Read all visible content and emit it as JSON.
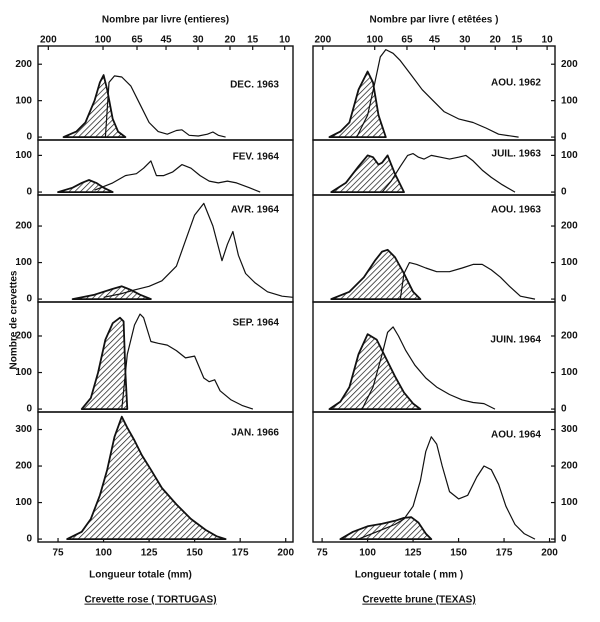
{
  "chart_data": [
    {
      "type": "line",
      "color": "#111111",
      "x2label": "Nombre par livre (entieres)",
      "x2ticks": [
        200,
        100,
        65,
        45,
        30,
        20,
        15,
        10
      ],
      "x2lim": [
        228,
        9
      ],
      "x2log": true,
      "xlabel": "Longueur totale (mm)",
      "xlim": [
        64,
        204
      ],
      "xticks": [
        75,
        100,
        125,
        150,
        175,
        200
      ],
      "caption": "Crevette rose ( TORTUGAS)",
      "ylabel": "Nombre de crevettes",
      "yaxis_side": "left",
      "panels": [
        {
          "label": "DEC. 1963",
          "ylim": [
            -8,
            250
          ],
          "yticks": [
            0,
            100,
            200
          ],
          "series": [
            {
              "hatched": true,
              "x": [
                78,
                85,
                90,
                95,
                98,
                100,
                102,
                105,
                108,
                112
              ],
              "values": [
                0,
                15,
                40,
                100,
                150,
                170,
                130,
                50,
                15,
                0
              ]
            },
            {
              "hatched": false,
              "x": [
                101,
                103,
                106,
                110,
                115,
                120,
                125,
                130,
                135,
                140,
                143,
                147,
                152,
                157,
                160,
                163,
                167
              ],
              "values": [
                0,
                150,
                168,
                165,
                140,
                90,
                40,
                15,
                8,
                18,
                20,
                5,
                3,
                8,
                14,
                5,
                0
              ]
            }
          ]
        },
        {
          "label": "FEV. 1964",
          "ylim": [
            -8,
            142
          ],
          "yticks": [
            0,
            100
          ],
          "series": [
            {
              "hatched": true,
              "x": [
                75,
                83,
                88,
                92,
                96,
                100,
                105
              ],
              "values": [
                0,
                12,
                25,
                33,
                25,
                12,
                0
              ]
            },
            {
              "hatched": false,
              "x": [
                95,
                105,
                112,
                118,
                122,
                126,
                129,
                133,
                138,
                143,
                148,
                153,
                158,
                163,
                168,
                173,
                180,
                186
              ],
              "values": [
                5,
                25,
                45,
                50,
                65,
                85,
                45,
                45,
                55,
                75,
                65,
                45,
                30,
                25,
                30,
                25,
                12,
                0
              ]
            }
          ]
        },
        {
          "label": "AVR. 1964",
          "ylim": [
            -8,
            285
          ],
          "yticks": [
            0,
            100,
            200
          ],
          "series": [
            {
              "hatched": true,
              "x": [
                83,
                95,
                105,
                110,
                115,
                120,
                126
              ],
              "values": [
                0,
                12,
                28,
                35,
                25,
                12,
                0
              ]
            },
            {
              "hatched": false,
              "x": [
                100,
                110,
                117,
                125,
                132,
                140,
                145,
                150,
                155,
                160,
                165,
                168,
                171,
                174,
                178,
                183,
                190,
                198,
                204
              ],
              "values": [
                5,
                15,
                25,
                35,
                50,
                90,
                160,
                230,
                262,
                200,
                105,
                150,
                185,
                120,
                70,
                45,
                20,
                8,
                5
              ]
            }
          ]
        },
        {
          "label": "SEP. 1964",
          "ylim": [
            -8,
            293
          ],
          "yticks": [
            0,
            100,
            200
          ],
          "series": [
            {
              "hatched": true,
              "x": [
                88,
                93,
                97,
                101,
                105,
                109,
                111,
                112,
                113
              ],
              "values": [
                0,
                30,
                100,
                190,
                235,
                250,
                240,
                100,
                0
              ]
            },
            {
              "hatched": false,
              "x": [
                110,
                113,
                117,
                120,
                122,
                126,
                130,
                135,
                140,
                145,
                150,
                155,
                158,
                161,
                164,
                170,
                176,
                182
              ],
              "values": [
                0,
                150,
                230,
                260,
                250,
                185,
                180,
                175,
                160,
                140,
                145,
                85,
                75,
                80,
                50,
                25,
                10,
                0
              ]
            }
          ]
        },
        {
          "label": "JAN. 1966",
          "ylim": [
            -8,
            348
          ],
          "yticks": [
            0,
            100,
            200,
            300
          ],
          "series": [
            {
              "hatched": true,
              "x": [
                80,
                88,
                93,
                98,
                102,
                106,
                110,
                113,
                117,
                121,
                126,
                132,
                140,
                148,
                156,
                162,
                167
              ],
              "values": [
                0,
                20,
                55,
                120,
                190,
                280,
                335,
                305,
                270,
                230,
                190,
                140,
                95,
                55,
                25,
                8,
                0
              ]
            }
          ]
        }
      ]
    },
    {
      "type": "line",
      "color": "#111111",
      "x2label": "Nombre par livre ( etêtées )",
      "x2ticks": [
        200,
        100,
        65,
        45,
        30,
        20,
        15,
        10
      ],
      "x2lim": [
        228,
        9
      ],
      "x2log": true,
      "xlabel": "Longueur totale ( mm )",
      "xlim": [
        70,
        203
      ],
      "xticks": [
        75,
        100,
        125,
        150,
        175,
        200
      ],
      "caption": "Crevette brune (TEXAS)",
      "yaxis_side": "right",
      "panels": [
        {
          "label": "AOU. 1962",
          "ylim": [
            -8,
            250
          ],
          "yticks": [
            0,
            100,
            200
          ],
          "series": [
            {
              "hatched": true,
              "x": [
                79,
                85,
                90,
                95,
                100,
                103,
                106,
                110
              ],
              "values": [
                0,
                15,
                40,
                130,
                180,
                150,
                60,
                0
              ]
            },
            {
              "hatched": false,
              "x": [
                94,
                100,
                104,
                107,
                110,
                114,
                118,
                124,
                130,
                136,
                142,
                150,
                158,
                165,
                172,
                183
              ],
              "values": [
                0,
                60,
                150,
                220,
                240,
                230,
                210,
                170,
                130,
                100,
                70,
                50,
                40,
                25,
                8,
                0
              ]
            }
          ]
        },
        {
          "label": "JUIL. 1963",
          "ylim": [
            -8,
            142
          ],
          "yticks": [
            0,
            100
          ],
          "series": [
            {
              "hatched": true,
              "x": [
                80,
                88,
                95,
                100,
                103,
                106,
                108,
                111,
                115,
                120
              ],
              "values": [
                0,
                25,
                70,
                100,
                95,
                75,
                80,
                100,
                50,
                0
              ]
            },
            {
              "hatched": false,
              "x": [
                108,
                113,
                118,
                122,
                125,
                128,
                131,
                135,
                140,
                145,
                150,
                154,
                158,
                163,
                168,
                174,
                181
              ],
              "values": [
                0,
                30,
                70,
                100,
                105,
                95,
                90,
                100,
                95,
                90,
                95,
                100,
                85,
                60,
                40,
                20,
                0
              ]
            }
          ]
        },
        {
          "label": "AOU. 1963",
          "ylim": [
            -8,
            285
          ],
          "yticks": [
            0,
            100,
            200
          ],
          "series": [
            {
              "hatched": true,
              "x": [
                80,
                90,
                98,
                104,
                108,
                111,
                115,
                120,
                125,
                129
              ],
              "values": [
                0,
                20,
                60,
                105,
                130,
                135,
                115,
                70,
                20,
                0
              ]
            },
            {
              "hatched": false,
              "x": [
                118,
                120,
                123,
                127,
                132,
                138,
                145,
                152,
                158,
                163,
                168,
                173,
                178,
                184,
                192
              ],
              "values": [
                0,
                70,
                100,
                95,
                85,
                75,
                75,
                85,
                95,
                95,
                80,
                60,
                35,
                8,
                0
              ]
            }
          ]
        },
        {
          "label": "JUIN. 1964",
          "ylim": [
            -8,
            293
          ],
          "yticks": [
            0,
            100,
            200
          ],
          "series": [
            {
              "hatched": true,
              "x": [
                79,
                85,
                90,
                95,
                100,
                105,
                110,
                115,
                120,
                125,
                129
              ],
              "values": [
                0,
                20,
                60,
                150,
                205,
                190,
                140,
                90,
                45,
                15,
                0
              ]
            },
            {
              "hatched": false,
              "x": [
                97,
                103,
                108,
                111,
                114,
                117,
                121,
                126,
                132,
                138,
                145,
                152,
                158,
                164,
                170
              ],
              "values": [
                0,
                60,
                150,
                210,
                225,
                200,
                160,
                120,
                85,
                60,
                40,
                25,
                18,
                15,
                0
              ]
            }
          ]
        },
        {
          "label": "AOU. 1964",
          "ylim": [
            -8,
            348
          ],
          "yticks": [
            0,
            100,
            200,
            300
          ],
          "series": [
            {
              "hatched": true,
              "x": [
                85,
                92,
                100,
                108,
                115,
                120,
                124,
                128,
                132,
                135
              ],
              "values": [
                0,
                20,
                35,
                42,
                50,
                58,
                60,
                45,
                15,
                0
              ]
            },
            {
              "hatched": false,
              "x": [
                95,
                105,
                115,
                120,
                125,
                129,
                132,
                135,
                138,
                141,
                145,
                150,
                155,
                160,
                164,
                168,
                172,
                176,
                181,
                186,
                192
              ],
              "values": [
                0,
                20,
                40,
                55,
                90,
                160,
                240,
                280,
                260,
                200,
                130,
                110,
                120,
                170,
                200,
                190,
                150,
                90,
                40,
                15,
                0
              ]
            }
          ]
        }
      ]
    }
  ]
}
